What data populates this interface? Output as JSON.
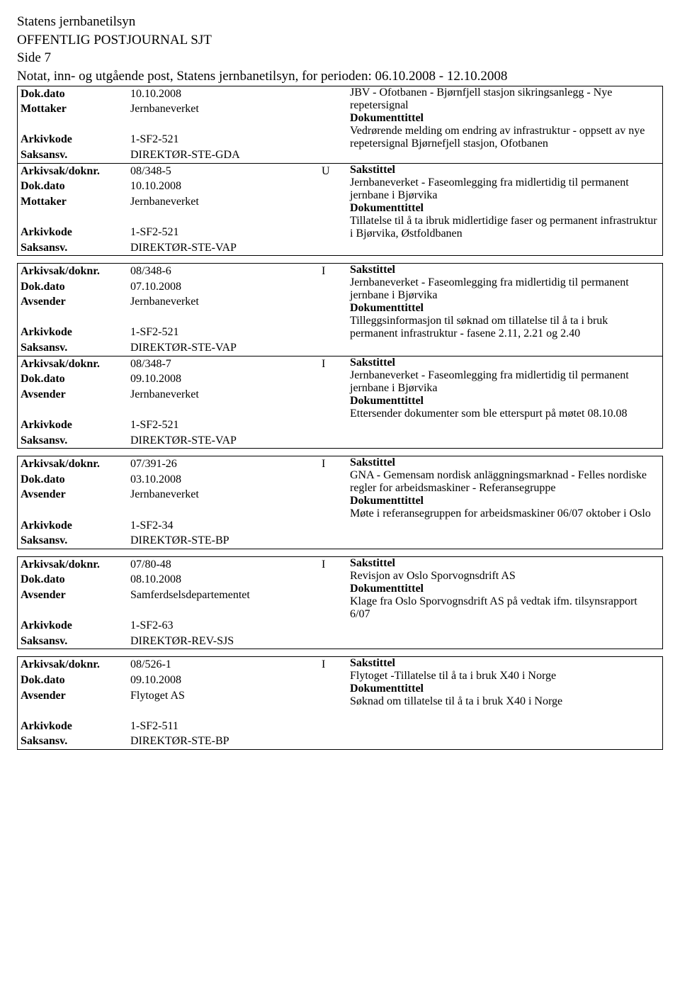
{
  "header": {
    "org": "Statens jernbanetilsyn",
    "title": "OFFENTLIG POSTJOURNAL SJT",
    "page": "Side 7",
    "subtitle": "Notat, inn- og utgående post, Statens jernbanetilsyn, for perioden: 06.10.2008 - 12.10.2008"
  },
  "labels": {
    "arkivsak": "Arkivsak/doknr.",
    "dokdato": "Dok.dato",
    "mottaker": "Mottaker",
    "avsender": "Avsender",
    "arkivkode": "Arkivkode",
    "saksansv": "Saksansv.",
    "sakstittel": "Sakstittel",
    "dokumenttittel": "Dokumenttittel"
  },
  "entries": [
    {
      "dokdato": "10.10.2008",
      "party_label": "Mottaker",
      "party": "Jernbaneverket",
      "arkivkode": "1-SF2-521",
      "saksansv": "DIREKTØR-STE-GDA",
      "sakstittel": "JBV - Ofotbanen - Bjørnfjell stasjon sikringsanlegg - Nye repetersignal",
      "doktittel": "Vedrørende melding om endring av infrastruktur - oppsett av nye repetersignal Bjørnefjell stasjon, Ofotbanen"
    },
    {
      "arkivsak": "08/348-5",
      "io": "U",
      "dokdato": "10.10.2008",
      "party_label": "Mottaker",
      "party": "Jernbaneverket",
      "arkivkode": "1-SF2-521",
      "saksansv": "DIREKTØR-STE-VAP",
      "sakstittel": "Jernbaneverket - Faseomlegging fra midlertidig til permanent jernbane i Bjørvika",
      "doktittel": "Tillatelse til å ta ibruk midlertidige faser og permanent infrastruktur i Bjørvika, Østfoldbanen"
    },
    {
      "arkivsak": "08/348-6",
      "io": "I",
      "dokdato": "07.10.2008",
      "party_label": "Avsender",
      "party": "Jernbaneverket",
      "arkivkode": "1-SF2-521",
      "saksansv": "DIREKTØR-STE-VAP",
      "sakstittel": "Jernbaneverket - Faseomlegging fra midlertidig til permanent jernbane i Bjørvika",
      "doktittel": "Tilleggsinformasjon til søknad om tillatelse til å ta i bruk permanent infrastruktur - fasene 2.11, 2.21 og 2.40"
    },
    {
      "arkivsak": "08/348-7",
      "io": "I",
      "dokdato": "09.10.2008",
      "party_label": "Avsender",
      "party": "Jernbaneverket",
      "arkivkode": "1-SF2-521",
      "saksansv": "DIREKTØR-STE-VAP",
      "sakstittel": "Jernbaneverket - Faseomlegging fra midlertidig til permanent jernbane i Bjørvika",
      "doktittel": "Ettersender dokumenter som ble etterspurt på møtet 08.10.08"
    },
    {
      "arkivsak": "07/391-26",
      "io": "I",
      "dokdato": "03.10.2008",
      "party_label": "Avsender",
      "party": "Jernbaneverket",
      "arkivkode": "1-SF2-34",
      "saksansv": "DIREKTØR-STE-BP",
      "sakstittel": "GNA - Gemensam nordisk anläggningsmarknad - Felles nordiske regler for arbeidsmaskiner - Referansegruppe",
      "doktittel": "Møte i referansegruppen for arbeidsmaskiner 06/07 oktober i Oslo"
    },
    {
      "arkivsak": "07/80-48",
      "io": "I",
      "dokdato": "08.10.2008",
      "party_label": "Avsender",
      "party": "Samferdselsdepartementet",
      "arkivkode": "1-SF2-63",
      "saksansv": "DIREKTØR-REV-SJS",
      "sakstittel": "Revisjon av Oslo Sporvognsdrift AS",
      "doktittel": "Klage fra Oslo Sporvognsdrift AS på vedtak ifm. tilsynsrapport 6/07"
    },
    {
      "arkivsak": "08/526-1",
      "io": "I",
      "dokdato": "09.10.2008",
      "party_label": "Avsender",
      "party": "Flytoget AS",
      "arkivkode": "1-SF2-511",
      "saksansv": "DIREKTØR-STE-BP",
      "sakstittel": "Flytoget -Tillatelse til å ta i bruk X40 i Norge",
      "doktittel": "Søknad om tillatelse til å ta i bruk X40 i Norge"
    }
  ]
}
